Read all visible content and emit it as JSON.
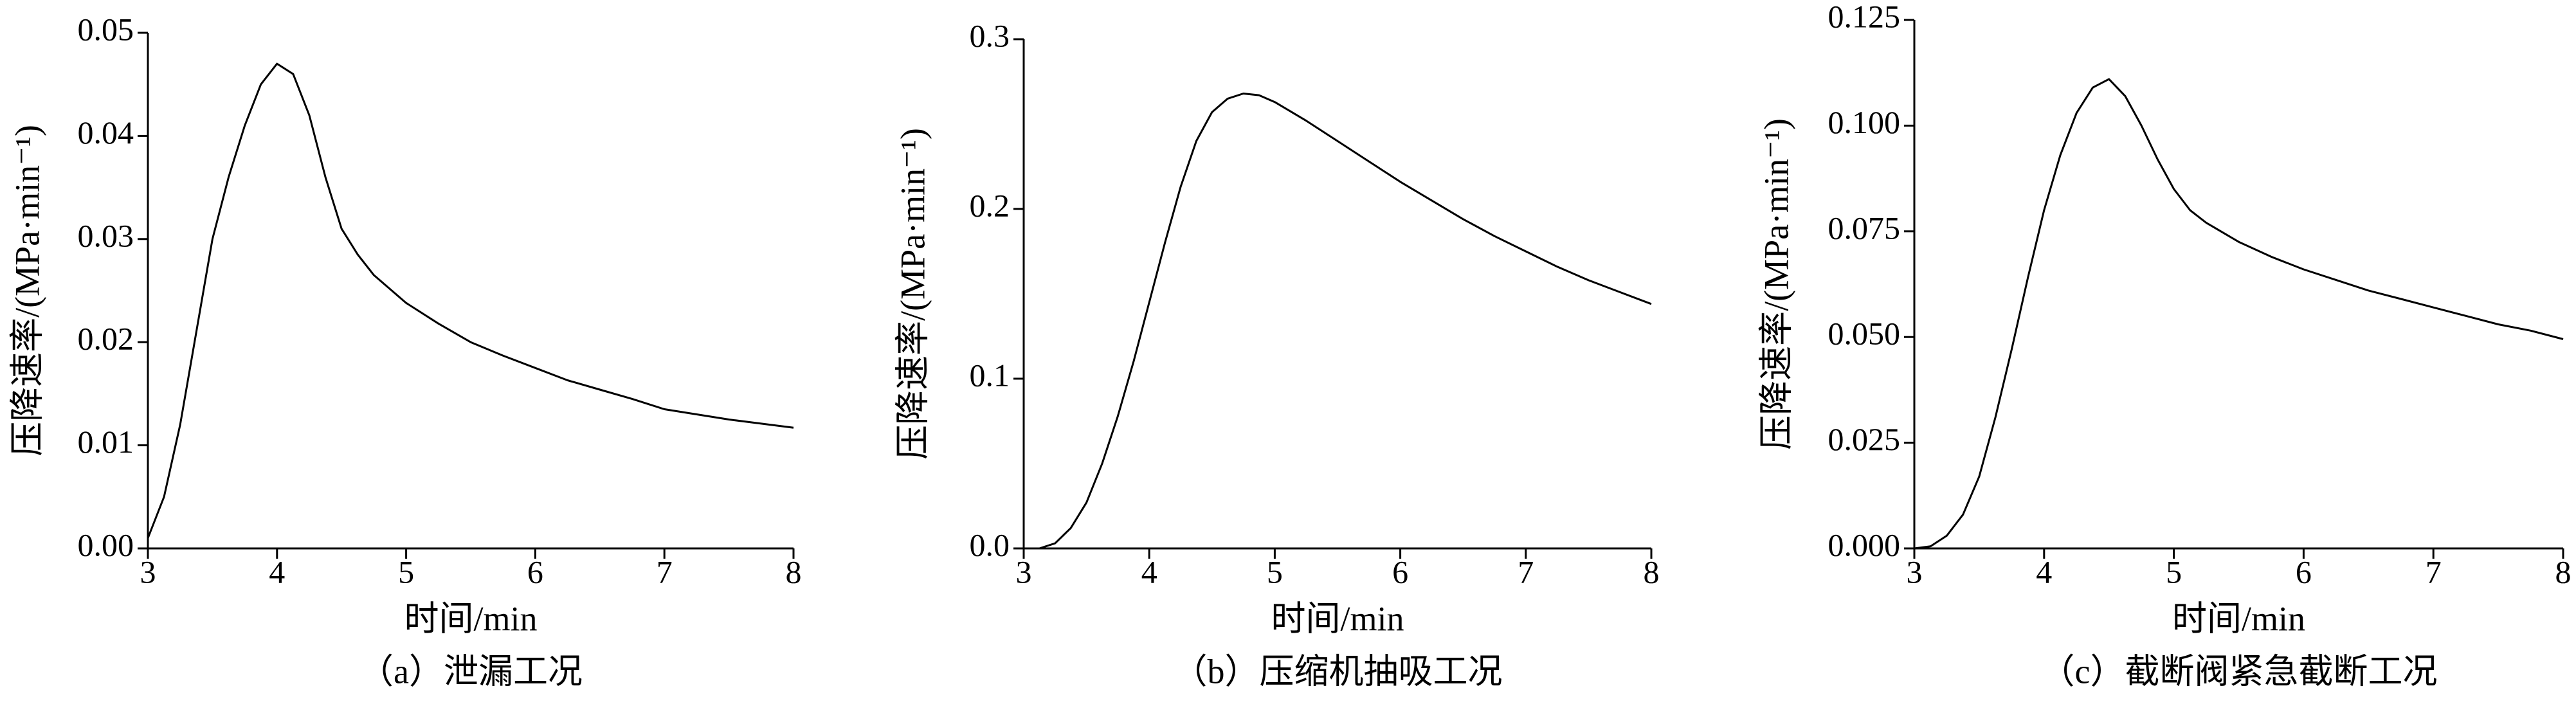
{
  "chart_data": [
    {
      "type": "line",
      "caption": "（a）泄漏工况",
      "x_label": "时间/min",
      "y_label": "压降速率/(MPa·min⁻¹)",
      "color": "#000000",
      "x": [
        3.0,
        3.125,
        3.25,
        3.375,
        3.5,
        3.625,
        3.75,
        3.875,
        4.0,
        4.125,
        4.25,
        4.375,
        4.5,
        4.625,
        4.75,
        5.0,
        5.25,
        5.5,
        5.75,
        6.0,
        6.25,
        6.5,
        6.75,
        7.0,
        7.25,
        7.5,
        7.75,
        8.0
      ],
      "values": [
        0.001,
        0.005,
        0.012,
        0.021,
        0.03,
        0.036,
        0.041,
        0.045,
        0.047,
        0.046,
        0.042,
        0.036,
        0.031,
        0.0285,
        0.0265,
        0.0238,
        0.0218,
        0.02,
        0.0187,
        0.0175,
        0.0163,
        0.0154,
        0.0145,
        0.0135,
        0.013,
        0.0125,
        0.0121,
        0.0117
      ],
      "xlim": [
        3,
        8
      ],
      "xticks": [
        3,
        4,
        5,
        6,
        7,
        8
      ],
      "ylim": [
        0,
        0.05
      ],
      "yticks": [
        {
          "value": 0,
          "label": "0.00"
        },
        0.01,
        0.02,
        0.03,
        0.04,
        0.05
      ]
    },
    {
      "type": "line",
      "caption": "（b）压缩机抽吸工况",
      "x_label": "时间/min",
      "y_label": "压降速率/(MPa·min⁻¹)",
      "color": "#000000",
      "x": [
        3.0,
        3.125,
        3.25,
        3.375,
        3.5,
        3.625,
        3.75,
        3.875,
        4.0,
        4.125,
        4.25,
        4.375,
        4.5,
        4.625,
        4.75,
        4.875,
        5.0,
        5.25,
        5.5,
        5.75,
        6.0,
        6.25,
        6.5,
        6.75,
        7.0,
        7.25,
        7.5,
        7.75,
        8.0
      ],
      "values": [
        0,
        0,
        0.003,
        0.012,
        0.027,
        0.05,
        0.078,
        0.11,
        0.145,
        0.18,
        0.213,
        0.24,
        0.257,
        0.265,
        0.268,
        0.267,
        0.263,
        0.252,
        0.24,
        0.228,
        0.216,
        0.205,
        0.194,
        0.184,
        0.175,
        0.166,
        0.158,
        0.151,
        0.144
      ],
      "xlim": [
        3,
        8
      ],
      "xticks": [
        3,
        4,
        5,
        6,
        7,
        8
      ],
      "ylim": [
        0,
        0.3
      ],
      "yticks": [
        {
          "value": 0,
          "label": "0.0"
        },
        0.1,
        0.2,
        0.3
      ]
    },
    {
      "type": "line",
      "caption": "（c）截断阀紧急截断工况",
      "x_label": "时间/min",
      "y_label": "压降速率/(MPa·min⁻¹)",
      "color": "#000000",
      "x": [
        3.0,
        3.125,
        3.25,
        3.375,
        3.5,
        3.625,
        3.75,
        3.875,
        4.0,
        4.125,
        4.25,
        4.375,
        4.5,
        4.625,
        4.75,
        4.875,
        5.0,
        5.125,
        5.25,
        5.5,
        5.75,
        6.0,
        6.25,
        6.5,
        6.75,
        7.0,
        7.25,
        7.5,
        7.75,
        8.0
      ],
      "values": [
        0,
        0.0005,
        0.003,
        0.008,
        0.017,
        0.031,
        0.047,
        0.064,
        0.08,
        0.093,
        0.103,
        0.109,
        0.111,
        0.107,
        0.1,
        0.092,
        0.085,
        0.08,
        0.077,
        0.0725,
        0.069,
        0.066,
        0.0635,
        0.061,
        0.059,
        0.057,
        0.055,
        0.053,
        0.0515,
        0.0495
      ],
      "xlim": [
        3,
        8
      ],
      "xticks": [
        3,
        4,
        5,
        6,
        7,
        8
      ],
      "ylim": [
        0,
        0.125
      ],
      "yticks": [
        {
          "value": 0,
          "label": "0.000"
        },
        {
          "value": 0.025,
          "label": "0.025"
        },
        {
          "value": 0.05,
          "label": "0.050"
        },
        {
          "value": 0.075,
          "label": "0.075"
        },
        {
          "value": 0.1,
          "label": "0.100"
        },
        {
          "value": 0.125,
          "label": "0.125"
        }
      ]
    }
  ]
}
